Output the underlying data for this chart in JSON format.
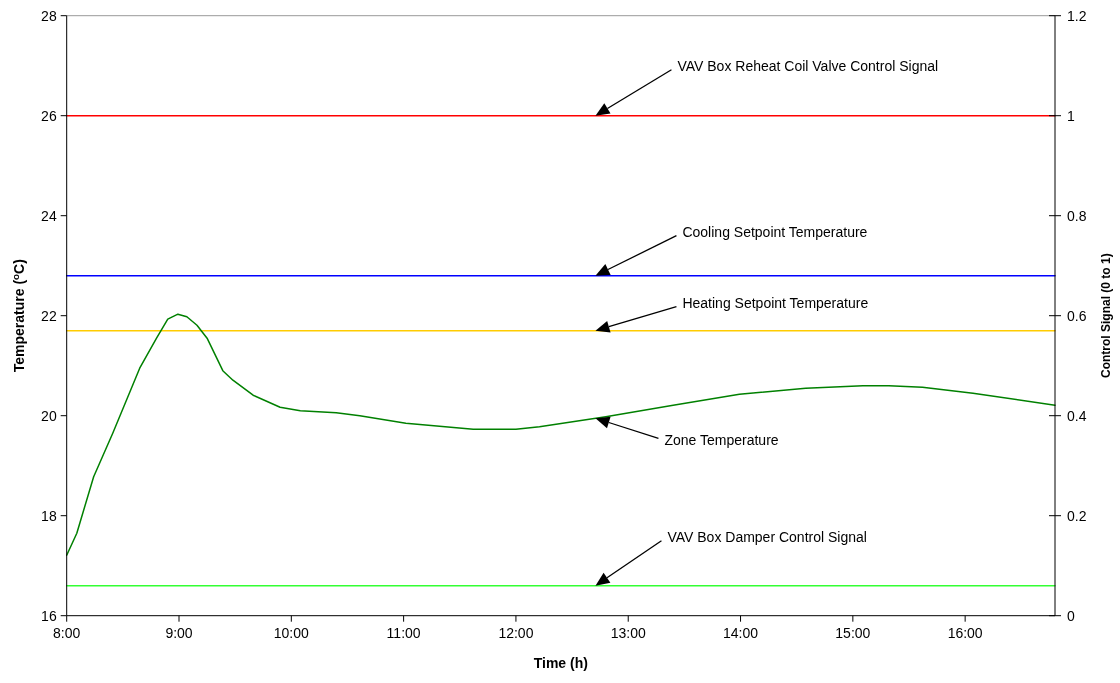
{
  "chart_data": {
    "type": "line",
    "xlabel": "Time (h)",
    "ylabel": "Temperature ($^{o}$C)",
    "y2label": "Control Signal (0 to 1)",
    "xlim": [
      8,
      16.8
    ],
    "xticks": [
      {
        "value": 8,
        "label": "8:00"
      },
      {
        "value": 9,
        "label": "9:00"
      },
      {
        "value": 10,
        "label": "10:00"
      },
      {
        "value": 11,
        "label": "11:00"
      },
      {
        "value": 12,
        "label": "12:00"
      },
      {
        "value": 13,
        "label": "13:00"
      },
      {
        "value": 14,
        "label": "14:00"
      },
      {
        "value": 15,
        "label": "15:00"
      },
      {
        "value": 16,
        "label": "16:00"
      }
    ],
    "ylim": [
      16,
      28
    ],
    "yticks": [
      16,
      18,
      20,
      22,
      24,
      26,
      28
    ],
    "y2lim": [
      0,
      1.2
    ],
    "y2ticks": [
      0,
      0.2,
      0.4,
      0.6,
      0.8,
      1,
      1.2
    ],
    "grid": false,
    "marker": "none",
    "line_style": "solid",
    "series": [
      {
        "name": "VAV Box Reheat Coil Valve Control Signal",
        "color": "#ff0000",
        "axis": "y2",
        "x": [
          8,
          16.8
        ],
        "values": [
          1,
          1
        ]
      },
      {
        "name": "Cooling Setpoint Temperature",
        "color": "#0000ff",
        "x": [
          8,
          16.8
        ],
        "values": [
          22.8,
          22.8
        ]
      },
      {
        "name": "Heating Setpoint Temperature",
        "color": "#ffcc00",
        "x": [
          8,
          16.8
        ],
        "values": [
          21.7,
          21.7
        ]
      },
      {
        "name": "Zone Temperature",
        "color": "#008000",
        "x": [
          8,
          8.09,
          8.24,
          8.41,
          8.65,
          8.8,
          8.9,
          8.99,
          9.07,
          9.16,
          9.25,
          9.39,
          9.48,
          9.66,
          9.9,
          10.08,
          10.4,
          10.61,
          11.02,
          11.62,
          12,
          12.21,
          12.8,
          13.4,
          13.99,
          14.58,
          15.09,
          15.32,
          15.62,
          16.07,
          16.8
        ],
        "values": [
          17.21,
          17.65,
          18.78,
          19.65,
          20.95,
          21.55,
          21.93,
          22.03,
          21.98,
          21.81,
          21.55,
          20.9,
          20.71,
          20.41,
          20.17,
          20.1,
          20.06,
          20,
          19.85,
          19.73,
          19.73,
          19.78,
          19.98,
          20.21,
          20.43,
          20.55,
          20.6,
          20.6,
          20.57,
          20.45,
          20.21
        ]
      },
      {
        "name": "VAV Box Damper Control Signal",
        "color": "#33ff33",
        "axis": "y2",
        "x": [
          8,
          16.8
        ],
        "values": [
          0.06,
          0.06
        ]
      }
    ]
  }
}
